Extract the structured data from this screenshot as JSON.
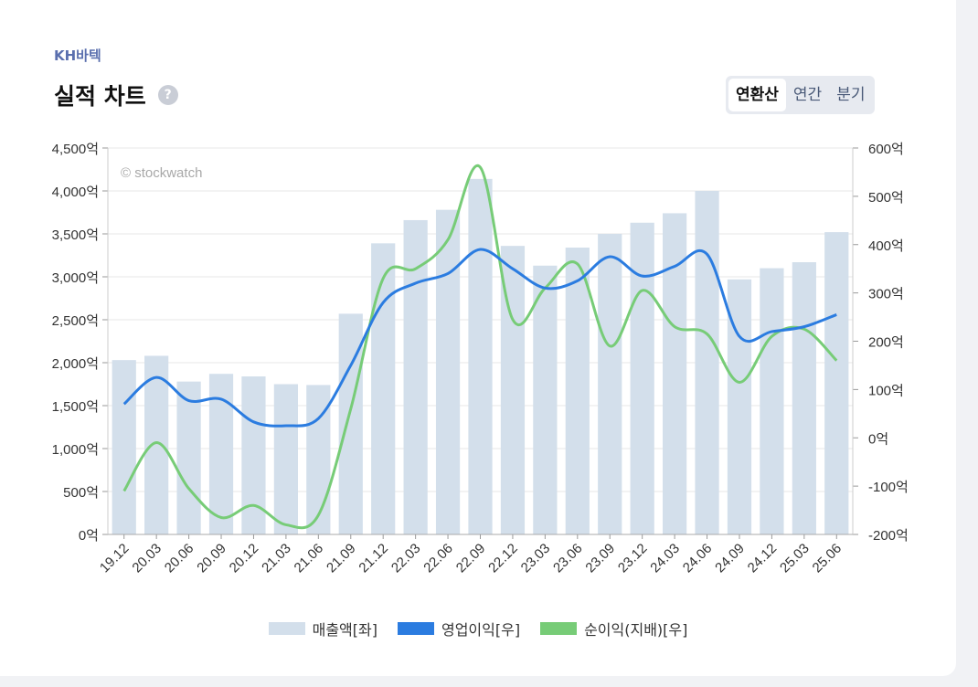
{
  "header": {
    "company": "KH바텍",
    "title": "실적 차트",
    "help_icon": "?",
    "tabs": [
      {
        "label": "연환산",
        "active": true
      },
      {
        "label": "연간",
        "active": false
      },
      {
        "label": "분기",
        "active": false
      }
    ]
  },
  "colors": {
    "sales": "#d3dfeb",
    "operating": "#2b7ce0",
    "net": "#77cc77",
    "grid": "#e7e7e7"
  },
  "chart_data": {
    "type": "bar+line",
    "watermark": "© stockwatch",
    "categories": [
      "19.12",
      "20.03",
      "20.06",
      "20.09",
      "20.12",
      "21.03",
      "21.06",
      "21.09",
      "21.12",
      "22.03",
      "22.06",
      "22.09",
      "22.12",
      "23.03",
      "23.06",
      "23.09",
      "23.12",
      "24.03",
      "24.06",
      "24.09",
      "24.12",
      "25.03",
      "25.06"
    ],
    "left_axis": {
      "min": 0,
      "max": 4500,
      "ticks": [
        "0억",
        "500억",
        "1,000억",
        "1,500억",
        "2,000억",
        "2,500억",
        "3,000억",
        "3,500억",
        "4,000억",
        "4,500억"
      ]
    },
    "right_axis": {
      "min": -200,
      "max": 600,
      "ticks": [
        "-200억",
        "-100억",
        "0억",
        "100억",
        "200억",
        "300억",
        "400억",
        "500억",
        "600억"
      ]
    },
    "series": [
      {
        "name": "매출액[좌]",
        "type": "bar",
        "axis": "left",
        "values": [
          2030,
          2080,
          1780,
          1870,
          1840,
          1750,
          1740,
          2570,
          3390,
          3660,
          3780,
          4140,
          3360,
          3130,
          3340,
          3500,
          3630,
          3740,
          4000,
          2970,
          3100,
          3170,
          3520
        ]
      },
      {
        "name": "영업이익[우]",
        "type": "line",
        "axis": "right",
        "values": [
          70,
          125,
          77,
          80,
          33,
          25,
          40,
          150,
          280,
          320,
          340,
          390,
          350,
          310,
          325,
          375,
          335,
          355,
          380,
          210,
          220,
          230,
          255
        ]
      },
      {
        "name": "순이익(지배)[우]",
        "type": "line",
        "axis": "right",
        "values": [
          -110,
          -10,
          -105,
          -165,
          -140,
          -180,
          -160,
          60,
          330,
          350,
          410,
          560,
          245,
          310,
          360,
          190,
          305,
          230,
          215,
          115,
          210,
          225,
          160
        ]
      }
    ]
  },
  "legend": {
    "sales": "매출액[좌]",
    "operating": "영업이익[우]",
    "net": "순이익(지배)[우]"
  }
}
